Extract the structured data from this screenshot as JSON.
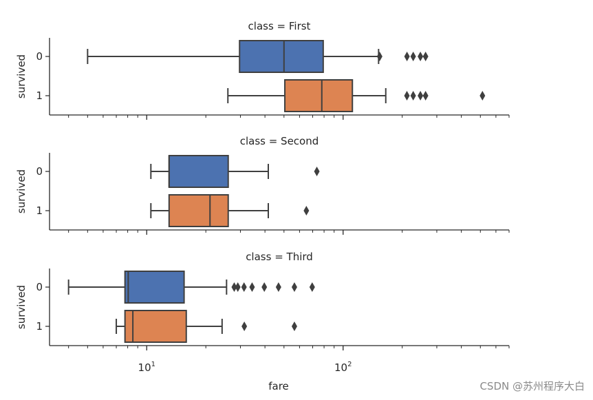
{
  "chart_data": {
    "type": "box",
    "x_scale": "log",
    "xlim": [
      3.2,
      700
    ],
    "xlabel": "fare",
    "ylabel": "survived",
    "categories": [
      "0",
      "1"
    ],
    "x_tick_labels": [
      "10^1",
      "10^2"
    ],
    "colors": {
      "0": "#4c72b0",
      "1": "#dd8452"
    },
    "panels": [
      {
        "title": "class = First",
        "boxes": [
          {
            "survived": "0",
            "whisker_low": 5.0,
            "q1": 29.7,
            "median": 50.0,
            "q3": 79.2,
            "whisker_high": 151.6,
            "outliers": [
              153.5,
              211.5,
              227.5,
              247.5,
              263.0
            ]
          },
          {
            "survived": "1",
            "whisker_low": 25.9,
            "q1": 50.5,
            "median": 77.9,
            "q3": 111.5,
            "whisker_high": 164.9,
            "outliers": [
              211.3,
              227.5,
              247.5,
              263.0,
              512.3
            ]
          }
        ]
      },
      {
        "title": "class = Second",
        "boxes": [
          {
            "survived": "0",
            "whisker_low": 10.5,
            "q1": 13.0,
            "median": 13.0,
            "q3": 26.0,
            "whisker_high": 41.6,
            "outliers": [
              73.5
            ]
          },
          {
            "survived": "1",
            "whisker_low": 10.5,
            "q1": 13.0,
            "median": 21.0,
            "q3": 26.0,
            "whisker_high": 41.6,
            "outliers": [
              65.0
            ]
          }
        ]
      },
      {
        "title": "class = Third",
        "boxes": [
          {
            "survived": "0",
            "whisker_low": 4.0,
            "q1": 7.75,
            "median": 8.05,
            "q3": 15.5,
            "whisker_high": 25.5,
            "outliers": [
              27.9,
              29.1,
              31.3,
              34.4,
              39.7,
              46.9,
              56.5,
              69.6
            ]
          },
          {
            "survived": "1",
            "whisker_low": 7.0,
            "q1": 7.75,
            "median": 8.5,
            "q3": 15.9,
            "whisker_high": 24.2,
            "outliers": [
              31.4,
              56.5
            ]
          }
        ]
      }
    ]
  },
  "watermark": "CSDN @苏州程序大白"
}
